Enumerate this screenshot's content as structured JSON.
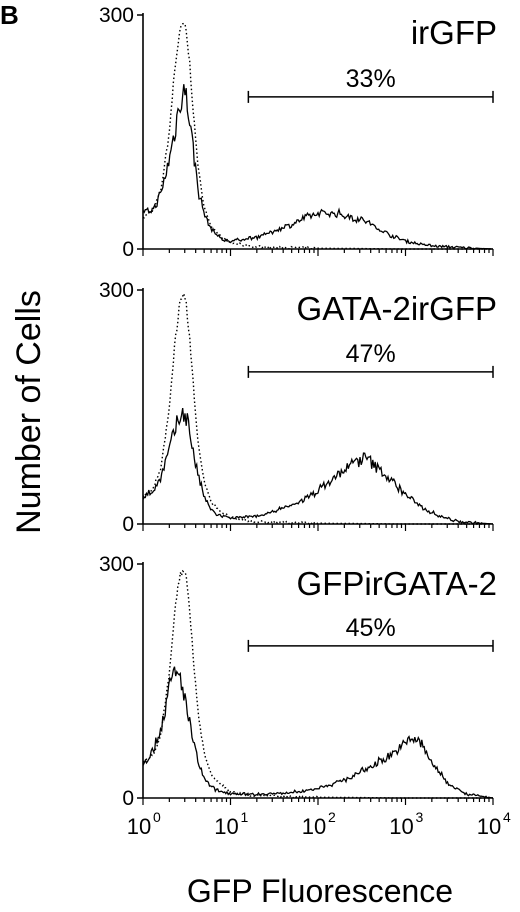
{
  "figure": {
    "panel_label": "B",
    "ylabel": "Number of Cells",
    "xlabel": "GFP Fluorescence"
  },
  "chart_data": [
    {
      "type": "line",
      "title": "irGFP",
      "xscale": "log",
      "xlim": [
        1,
        10000
      ],
      "ylim": [
        0,
        300
      ],
      "yticks": [
        "0",
        "300"
      ],
      "xticks": [
        {
          "base": "10",
          "exp": "0"
        },
        {
          "base": "10",
          "exp": "1"
        },
        {
          "base": "10",
          "exp": "2"
        },
        {
          "base": "10",
          "exp": "3"
        },
        {
          "base": "10",
          "exp": "4"
        }
      ],
      "gate": {
        "label": "33%",
        "range": [
          16,
          10000
        ]
      },
      "series": [
        {
          "style": "dotted",
          "x": [
            1,
            1.3,
            1.6,
            2,
            2.3,
            2.6,
            2.9,
            3.1,
            3.4,
            3.8,
            4.3,
            5,
            6,
            8,
            10,
            14,
            20,
            40,
            100,
            1000,
            10000
          ],
          "y": [
            40,
            50,
            75,
            150,
            230,
            275,
            290,
            280,
            240,
            170,
            100,
            55,
            28,
            15,
            8,
            5,
            3,
            2,
            1,
            0,
            0
          ]
        },
        {
          "style": "solid",
          "x": [
            1,
            1.3,
            1.6,
            2,
            2.3,
            2.6,
            2.9,
            3.1,
            3.4,
            3.8,
            4.3,
            5,
            6,
            7,
            8,
            10,
            13,
            20,
            30,
            50,
            80,
            120,
            180,
            250,
            350,
            500,
            800,
            1200,
            2000,
            4000,
            10000
          ],
          "y": [
            45,
            50,
            70,
            115,
            150,
            185,
            208,
            195,
            170,
            120,
            75,
            45,
            25,
            18,
            12,
            10,
            12,
            15,
            22,
            32,
            42,
            47,
            45,
            40,
            36,
            25,
            14,
            8,
            4,
            2,
            0
          ]
        }
      ]
    },
    {
      "type": "line",
      "title": "GATA-2irGFP",
      "xscale": "log",
      "xlim": [
        1,
        10000
      ],
      "ylim": [
        0,
        300
      ],
      "yticks": [
        "0",
        "300"
      ],
      "xticks": [
        {
          "base": "10",
          "exp": "0"
        },
        {
          "base": "10",
          "exp": "1"
        },
        {
          "base": "10",
          "exp": "2"
        },
        {
          "base": "10",
          "exp": "3"
        },
        {
          "base": "10",
          "exp": "4"
        }
      ],
      "gate": {
        "label": "47%",
        "range": [
          16,
          10000
        ]
      },
      "series": [
        {
          "style": "dotted",
          "x": [
            1,
            1.3,
            1.6,
            2,
            2.3,
            2.6,
            2.9,
            3.1,
            3.4,
            3.8,
            4.3,
            5,
            6,
            8,
            10,
            14,
            20,
            40,
            100,
            1000,
            10000
          ],
          "y": [
            35,
            45,
            70,
            150,
            230,
            278,
            292,
            282,
            240,
            170,
            100,
            55,
            28,
            15,
            8,
            5,
            3,
            2,
            1,
            0,
            0
          ]
        },
        {
          "style": "solid",
          "x": [
            1,
            1.3,
            1.6,
            2,
            2.3,
            2.6,
            2.9,
            3.1,
            3.4,
            3.8,
            4.3,
            5,
            6,
            7,
            8,
            10,
            13,
            20,
            30,
            50,
            80,
            120,
            180,
            250,
            350,
            500,
            700,
            1000,
            1500,
            2500,
            4000,
            10000
          ],
          "y": [
            35,
            42,
            60,
            95,
            118,
            135,
            145,
            140,
            120,
            90,
            60,
            35,
            18,
            12,
            10,
            8,
            8,
            10,
            15,
            24,
            35,
            50,
            65,
            78,
            85,
            70,
            55,
            38,
            22,
            10,
            3,
            0
          ]
        }
      ]
    },
    {
      "type": "line",
      "title": "GFPirGATA-2",
      "xscale": "log",
      "xlim": [
        1,
        10000
      ],
      "ylim": [
        0,
        300
      ],
      "yticks": [
        "0",
        "300"
      ],
      "xticks": [
        {
          "base": "10",
          "exp": "0"
        },
        {
          "base": "10",
          "exp": "1"
        },
        {
          "base": "10",
          "exp": "2"
        },
        {
          "base": "10",
          "exp": "3"
        },
        {
          "base": "10",
          "exp": "4"
        }
      ],
      "gate": {
        "label": "45%",
        "range": [
          16,
          10000
        ]
      },
      "series": [
        {
          "style": "dotted",
          "x": [
            1,
            1.3,
            1.6,
            2,
            2.3,
            2.6,
            2.9,
            3.1,
            3.4,
            3.8,
            4.3,
            5,
            6,
            8,
            10,
            14,
            20,
            40,
            100,
            1000,
            10000
          ],
          "y": [
            45,
            55,
            80,
            160,
            240,
            282,
            295,
            285,
            245,
            175,
            105,
            58,
            30,
            16,
            9,
            5,
            3,
            2,
            1,
            0,
            0
          ]
        },
        {
          "style": "solid",
          "x": [
            1,
            1.3,
            1.6,
            2,
            2.3,
            2.6,
            2.9,
            3.1,
            3.4,
            3.8,
            4.3,
            5,
            6,
            7,
            8,
            10,
            13,
            20,
            40,
            80,
            150,
            250,
            400,
            600,
            900,
            1200,
            1500,
            2000,
            3000,
            5000,
            10000
          ],
          "y": [
            45,
            60,
            90,
            140,
            160,
            155,
            140,
            120,
            95,
            70,
            45,
            25,
            14,
            10,
            8,
            6,
            5,
            5,
            6,
            10,
            18,
            28,
            40,
            52,
            65,
            78,
            70,
            45,
            20,
            5,
            0
          ]
        }
      ]
    }
  ]
}
